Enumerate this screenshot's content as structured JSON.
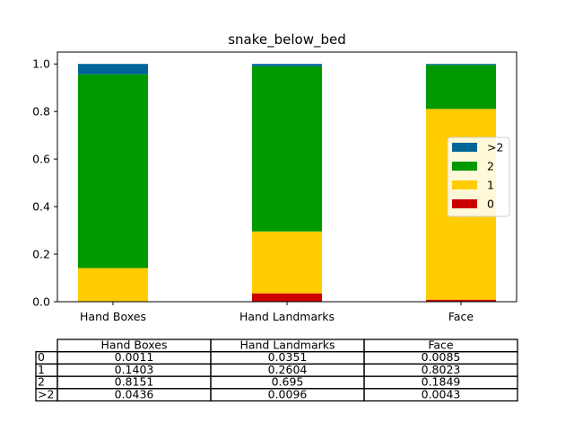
{
  "chart_data": {
    "type": "bar",
    "stacked": true,
    "title": "snake_below_bed",
    "xlabel": "",
    "ylabel": "",
    "categories": [
      "Hand Boxes",
      "Hand Landmarks",
      "Face"
    ],
    "ylim": [
      0,
      1.05
    ],
    "yticks": [
      "0.0",
      "0.2",
      "0.4",
      "0.6",
      "0.8",
      "1.0"
    ],
    "grid": false,
    "legend_position": "center-right",
    "legend_order": [
      ">2",
      "2",
      "1",
      "0"
    ],
    "series": [
      {
        "name": "0",
        "color": "#cc0000",
        "values": [
          0.0011,
          0.0351,
          0.0085
        ]
      },
      {
        "name": "1",
        "color": "#ffcc00",
        "values": [
          0.1403,
          0.2604,
          0.8023
        ]
      },
      {
        "name": "2",
        "color": "#009900",
        "values": [
          0.8151,
          0.695,
          0.1849
        ]
      },
      {
        "name": ">2",
        "color": "#006699",
        "values": [
          0.0436,
          0.0096,
          0.0043
        ]
      }
    ],
    "table": {
      "col_labels": [
        "Hand Boxes",
        "Hand Landmarks",
        "Face"
      ],
      "rows": [
        {
          "label": "0",
          "cells": [
            "0.0011",
            "0.0351",
            "0.0085"
          ]
        },
        {
          "label": "1",
          "cells": [
            "0.1403",
            "0.2604",
            "0.8023"
          ]
        },
        {
          "label": "2",
          "cells": [
            "0.8151",
            "0.695",
            "0.1849"
          ]
        },
        {
          "label": ">2",
          "cells": [
            "0.0436",
            "0.0096",
            "0.0043"
          ]
        }
      ]
    }
  }
}
